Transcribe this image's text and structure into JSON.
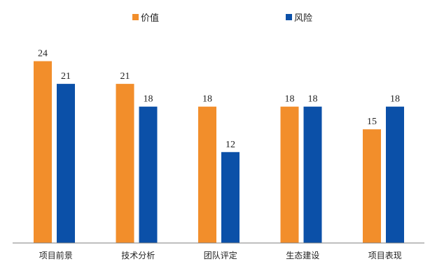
{
  "chart_data": {
    "type": "bar",
    "categories": [
      "项目前景",
      "技术分析",
      "团队评定",
      "生态建设",
      "项目表现"
    ],
    "series": [
      {
        "name": "价值",
        "values": [
          24,
          21,
          18,
          18,
          15
        ],
        "color": "#F28E2B"
      },
      {
        "name": "风险",
        "values": [
          21,
          18,
          12,
          18,
          18
        ],
        "color": "#0B50A8"
      }
    ],
    "ylim": [
      0,
      27
    ],
    "legend_position": "top",
    "grid": false,
    "title": "",
    "xlabel": "",
    "ylabel": ""
  }
}
